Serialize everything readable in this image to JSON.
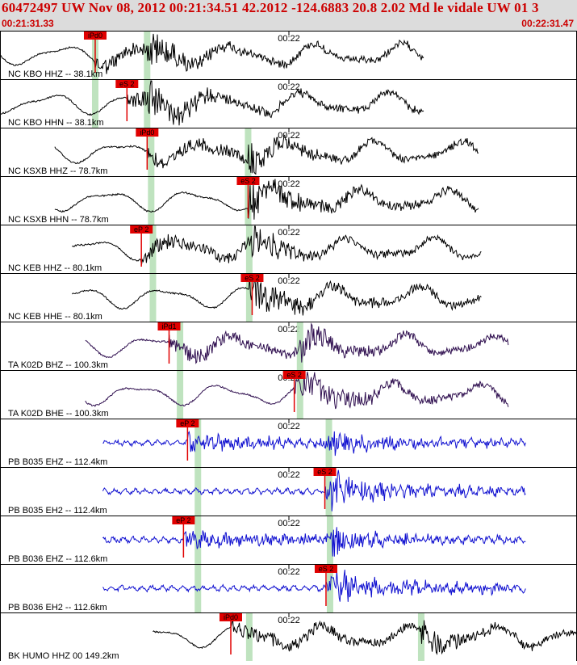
{
  "header": {
    "title": "60472497 UW Nov 08, 2012 00:21:34.51    42.2012 -124.6883 20.8 2.02 Md le vidale UW 01    3",
    "start_time": "00:21:31.33",
    "end_time": "00:22:31.47"
  },
  "minute_label": "00:22",
  "colors": {
    "header_bg": "#dcdcdc",
    "title_red": "#cc0000",
    "pick_red": "#e00000",
    "window_green": "#b8e0b8",
    "trace_black": "#000000",
    "trace_purple": "#301050",
    "trace_blue": "#1010d0"
  },
  "traces": [
    {
      "label": "NC KBO HHZ -- 38.1km",
      "color": "black",
      "picks": [
        {
          "t": "iPd0",
          "x": 0.165
        }
      ],
      "windows": [
        0.165,
        0.255
      ],
      "start": 0.0,
      "end": 0.735
    },
    {
      "label": "NC KBO HHN -- 38.1km",
      "color": "black",
      "picks": [
        {
          "t": "eS 2",
          "x": 0.22
        }
      ],
      "windows": [
        0.165,
        0.255
      ],
      "start": 0.0,
      "end": 0.735
    },
    {
      "label": "NC KSXB HHZ -- 78.7km",
      "color": "black",
      "picks": [
        {
          "t": "iPd0",
          "x": 0.255
        }
      ],
      "windows": [
        0.262,
        0.43
      ],
      "start": 0.095,
      "end": 0.83
    },
    {
      "label": "NC KSXB HHN -- 78.7km",
      "color": "black",
      "picks": [
        {
          "t": "eS 2",
          "x": 0.43
        }
      ],
      "windows": [
        0.262,
        0.43
      ],
      "start": 0.095,
      "end": 0.83
    },
    {
      "label": "NC KEB HHZ -- 80.1km",
      "color": "black",
      "picks": [
        {
          "t": "eP 2",
          "x": 0.245
        }
      ],
      "windows": [
        0.265,
        0.432
      ],
      "start": 0.125,
      "end": 0.835
    },
    {
      "label": "NC KEB HHE -- 80.1km",
      "color": "black",
      "picks": [
        {
          "t": "eS 2",
          "x": 0.437
        }
      ],
      "windows": [
        0.265,
        0.432
      ],
      "start": 0.125,
      "end": 0.835
    },
    {
      "label": "TA K02D BHZ -- 100.3km",
      "color": "purple",
      "picks": [
        {
          "t": "iPd1",
          "x": 0.293
        }
      ],
      "windows": [
        0.312,
        0.52
      ],
      "start": 0.148,
      "end": 0.882
    },
    {
      "label": "TA K02D BHE -- 100.3km",
      "color": "purple",
      "picks": [
        {
          "t": "eS 2",
          "x": 0.51
        }
      ],
      "windows": [
        0.312,
        0.52
      ],
      "start": 0.148,
      "end": 0.882
    },
    {
      "label": "PB B035 EHZ -- 112.4km",
      "color": "blue",
      "picks": [
        {
          "t": "eP 2",
          "x": 0.325
        }
      ],
      "windows": [
        0.343,
        0.57
      ],
      "start": 0.178,
      "end": 0.912
    },
    {
      "label": "PB B035 EH2 -- 112.4km",
      "color": "blue",
      "picks": [
        {
          "t": "eS 2",
          "x": 0.563
        }
      ],
      "windows": [
        0.343,
        0.57
      ],
      "start": 0.178,
      "end": 0.912
    },
    {
      "label": "PB B036 EHZ -- 112.6km",
      "color": "blue",
      "picks": [
        {
          "t": "eP 2",
          "x": 0.318
        }
      ],
      "windows": [
        0.343,
        0.572
      ],
      "start": 0.178,
      "end": 0.912
    },
    {
      "label": "PB B036 EH2 -- 112.6km",
      "color": "blue",
      "picks": [
        {
          "t": "eS 2",
          "x": 0.565
        }
      ],
      "windows": [
        0.343,
        0.572
      ],
      "start": 0.178,
      "end": 0.912
    },
    {
      "label": "BK HUMO HHZ 00 149.2km",
      "color": "black",
      "picks": [
        {
          "t": "iPd0",
          "x": 0.4
        }
      ],
      "windows": [
        0.432,
        0.73
      ],
      "start": 0.265,
      "end": 1.0
    }
  ]
}
